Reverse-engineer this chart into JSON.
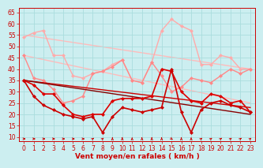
{
  "bg_color": "#cceef0",
  "grid_color": "#aadddd",
  "xlim": [
    -0.5,
    23.5
  ],
  "ylim": [
    8,
    67
  ],
  "yticks": [
    10,
    15,
    20,
    25,
    30,
    35,
    40,
    45,
    50,
    55,
    60,
    65
  ],
  "xticks": [
    0,
    1,
    2,
    3,
    4,
    5,
    6,
    7,
    8,
    9,
    10,
    11,
    12,
    13,
    14,
    15,
    16,
    17,
    18,
    19,
    20,
    21,
    22,
    23
  ],
  "lines": [
    {
      "name": "light_pink_markers_high",
      "x": [
        0,
        1,
        2,
        3,
        4,
        5,
        6,
        7,
        8,
        9,
        10,
        11,
        12,
        13,
        14,
        15,
        16,
        17,
        18,
        19,
        20,
        21,
        22,
        23
      ],
      "y": [
        54,
        56,
        57,
        46,
        46,
        37,
        36,
        38,
        39,
        42,
        44,
        35,
        34,
        43,
        57,
        62,
        59,
        57,
        42,
        42,
        46,
        45,
        40,
        40
      ],
      "color": "#ffaaaa",
      "lw": 1.0,
      "marker": "D",
      "ms": 2.5,
      "zorder": 2
    },
    {
      "name": "light_pink_straight_upper",
      "x": [
        0,
        23
      ],
      "y": [
        55,
        40
      ],
      "color": "#ffbbbb",
      "lw": 1.0,
      "marker": null,
      "ms": 0,
      "zorder": 1
    },
    {
      "name": "light_pink_straight_lower",
      "x": [
        0,
        23
      ],
      "y": [
        46,
        25
      ],
      "color": "#ffbbbb",
      "lw": 1.0,
      "marker": null,
      "ms": 0,
      "zorder": 1
    },
    {
      "name": "medium_pink_markers",
      "x": [
        0,
        1,
        2,
        3,
        4,
        5,
        6,
        7,
        8,
        9,
        10,
        11,
        12,
        13,
        14,
        15,
        16,
        17,
        18,
        19,
        20,
        21,
        22,
        23
      ],
      "y": [
        46,
        36,
        35,
        31,
        25,
        26,
        28,
        38,
        39,
        41,
        44,
        35,
        34,
        43,
        37,
        30,
        32,
        36,
        35,
        34,
        37,
        40,
        38,
        40
      ],
      "color": "#ff8888",
      "lw": 1.0,
      "marker": "D",
      "ms": 2.5,
      "zorder": 2
    },
    {
      "name": "red_markers_high",
      "x": [
        0,
        1,
        2,
        3,
        4,
        5,
        6,
        7,
        8,
        9,
        10,
        11,
        12,
        13,
        14,
        15,
        16,
        17,
        18,
        19,
        20,
        21,
        22,
        23
      ],
      "y": [
        35,
        33,
        29,
        29,
        24,
        20,
        19,
        20,
        20,
        26,
        27,
        27,
        27,
        28,
        40,
        39,
        30,
        26,
        25,
        29,
        28,
        25,
        26,
        21
      ],
      "color": "#dd0000",
      "lw": 1.2,
      "marker": "D",
      "ms": 2.5,
      "zorder": 3
    },
    {
      "name": "red_straight_upper",
      "x": [
        0,
        23
      ],
      "y": [
        35,
        23
      ],
      "color": "#cc0000",
      "lw": 1.0,
      "marker": null,
      "ms": 0,
      "zorder": 2
    },
    {
      "name": "red_straight_lower",
      "x": [
        0,
        23
      ],
      "y": [
        35,
        20
      ],
      "color": "#880000",
      "lw": 1.0,
      "marker": null,
      "ms": 0,
      "zorder": 2
    },
    {
      "name": "darkred_markers_low",
      "x": [
        0,
        1,
        2,
        3,
        4,
        5,
        6,
        7,
        8,
        9,
        10,
        11,
        12,
        13,
        14,
        15,
        16,
        17,
        18,
        19,
        20,
        21,
        22,
        23
      ],
      "y": [
        35,
        28,
        24,
        22,
        20,
        19,
        18,
        19,
        12,
        19,
        23,
        22,
        21,
        22,
        23,
        40,
        21,
        12,
        22,
        25,
        26,
        24,
        23,
        21
      ],
      "color": "#cc0000",
      "lw": 1.2,
      "marker": "D",
      "ms": 2.5,
      "zorder": 3
    }
  ],
  "xlabel": "Vent moyen/en rafales ( km/h )",
  "xlabel_color": "#cc0000",
  "xlabel_bold": true,
  "tick_color": "#cc0000",
  "tick_fontsize": 5.5,
  "xlabel_fontsize": 6.5,
  "arrow_angles": [
    90,
    90,
    90,
    90,
    90,
    90,
    90,
    45,
    45,
    0,
    0,
    0,
    0,
    0,
    0,
    135,
    0,
    0,
    45,
    45,
    45,
    45,
    45,
    45
  ]
}
